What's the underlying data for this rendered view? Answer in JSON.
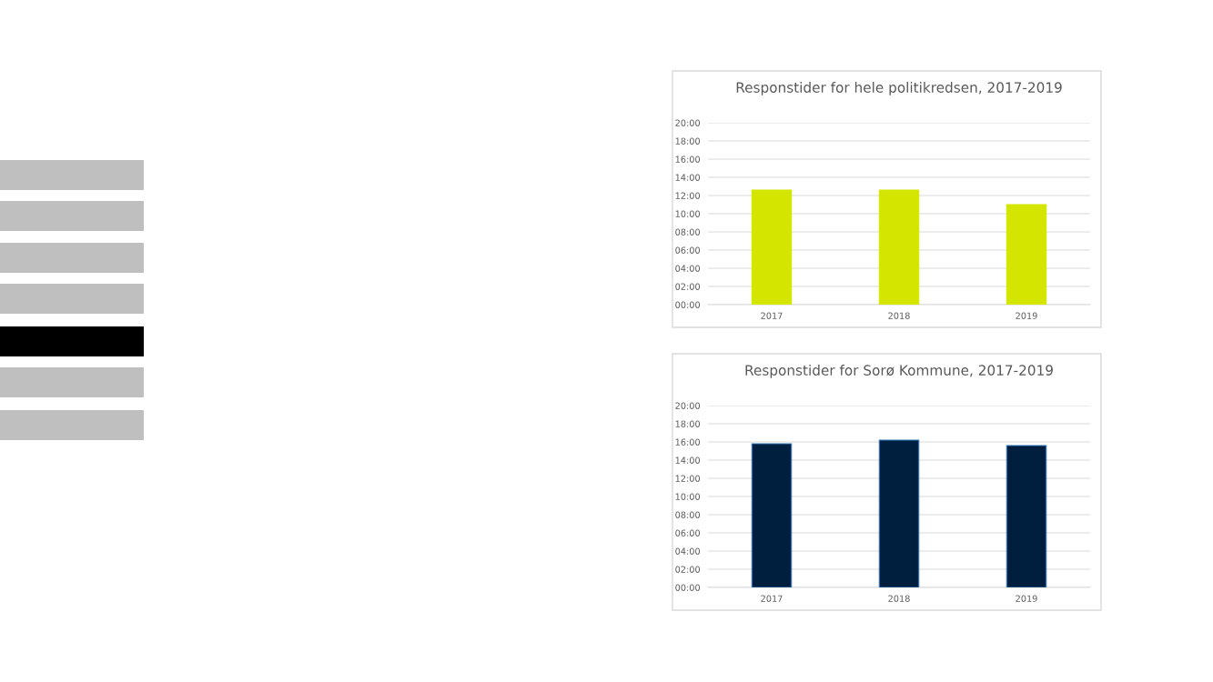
{
  "chart_data": [
    {
      "type": "bar",
      "title": "Responstider for hele politikredsen, 2017-2019",
      "categories": [
        "2017",
        "2018",
        "2019"
      ],
      "series": [
        {
          "color": "#d4e600",
          "values": [
            12.6,
            12.6,
            11.0
          ]
        }
      ],
      "ylim": [
        0,
        20
      ],
      "yticks": [
        {
          "value": 0,
          "label": "00:00"
        },
        {
          "value": 2,
          "label": "02:00"
        },
        {
          "value": 4,
          "label": "04:00"
        },
        {
          "value": 6,
          "label": "06:00"
        },
        {
          "value": 8,
          "label": "08:00"
        },
        {
          "value": 10,
          "label": "10:00"
        },
        {
          "value": 12,
          "label": "12:00"
        },
        {
          "value": 14,
          "label": "14:00"
        },
        {
          "value": 16,
          "label": "16:00"
        },
        {
          "value": 18,
          "label": "18:00"
        },
        {
          "value": 20,
          "label": "20:00"
        }
      ],
      "grid": "y"
    },
    {
      "type": "bar",
      "title": "Responstider for Sorø Kommune, 2017-2019",
      "categories": [
        "2017",
        "2018",
        "2019"
      ],
      "series": [
        {
          "color": "#001f3f",
          "values": [
            15.8,
            16.2,
            15.6
          ]
        }
      ],
      "ylim": [
        0,
        20
      ],
      "yticks": [
        {
          "value": 0,
          "label": "00:00"
        },
        {
          "value": 2,
          "label": "02:00"
        },
        {
          "value": 4,
          "label": "04:00"
        },
        {
          "value": 6,
          "label": "06:00"
        },
        {
          "value": 8,
          "label": "08:00"
        },
        {
          "value": 10,
          "label": "10:00"
        },
        {
          "value": 12,
          "label": "12:00"
        },
        {
          "value": 14,
          "label": "14:00"
        },
        {
          "value": 16,
          "label": "16:00"
        },
        {
          "value": 18,
          "label": "18:00"
        },
        {
          "value": 20,
          "label": "20:00"
        }
      ],
      "grid": "y"
    }
  ]
}
